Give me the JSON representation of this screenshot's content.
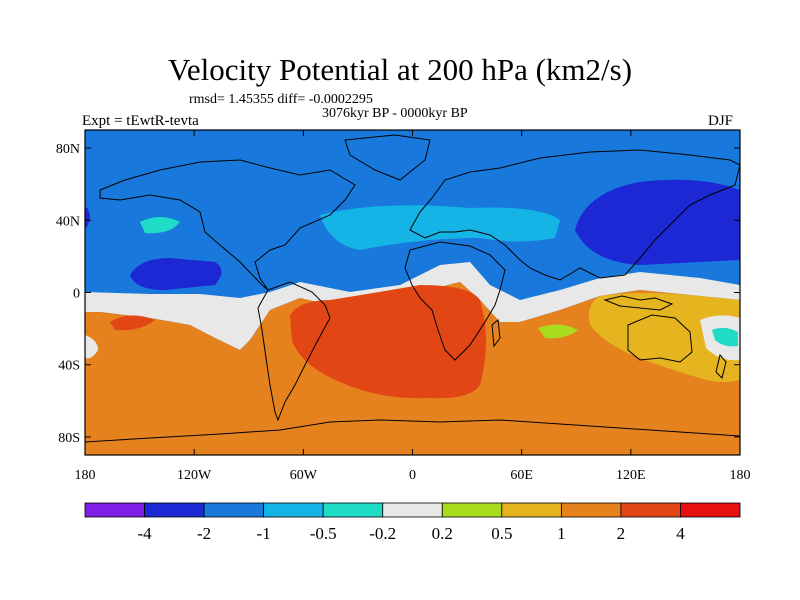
{
  "chart_data": {
    "type": "heatmap",
    "title": "Velocity Potential at 200 hPa (km2/s)",
    "stats": "rmsd= 1.45355 diff= -0.0002295",
    "subtitle": "3076kyr BP - 0000kyr BP",
    "left_label": "Expt = tEwtR-tevta",
    "right_label": "DJF",
    "x_ticks": [
      "180",
      "120W",
      "60W",
      "0",
      "60E",
      "120E",
      "180"
    ],
    "x_tick_values": [
      -180,
      -120,
      -60,
      0,
      60,
      120,
      180
    ],
    "y_ticks": [
      "80N",
      "40N",
      "0",
      "40S",
      "80S"
    ],
    "y_tick_values": [
      80,
      40,
      0,
      -40,
      -80
    ],
    "xlim": [
      -180,
      180
    ],
    "ylim": [
      -90,
      90
    ],
    "colorbar_labels": [
      "-4",
      "-2",
      "-1",
      "-0.5",
      "-0.2",
      "0.2",
      "0.5",
      "1",
      "2",
      "4"
    ],
    "colorbar_colors": [
      "#7e1ee6",
      "#1c28d4",
      "#1878dc",
      "#14b4e6",
      "#1edcc6",
      "#e8e8e8",
      "#aadc1e",
      "#e6b41e",
      "#e6821e",
      "#e14614",
      "#e61010"
    ],
    "field_regions": [
      {
        "name": "northern-band",
        "level": -2,
        "color": "#1878dc"
      },
      {
        "name": "north-pacific-low",
        "level": -3,
        "color": "#1c28d4"
      },
      {
        "name": "east-pacific-low",
        "level": -3,
        "color": "#1c28d4"
      },
      {
        "name": "atlantic-europe-band",
        "level": -0.7,
        "color": "#14b4e6"
      },
      {
        "name": "equatorial-zero-band",
        "level": 0,
        "color": "#e8e8e8"
      },
      {
        "name": "southern-positive",
        "level": 1.5,
        "color": "#e6821e"
      },
      {
        "name": "south-atlantic-high",
        "level": 3,
        "color": "#e14614"
      },
      {
        "name": "australia-band",
        "level": 0.7,
        "color": "#e6b41e"
      }
    ]
  }
}
